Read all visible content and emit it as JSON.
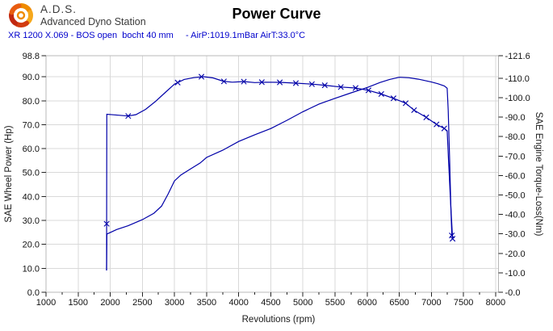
{
  "header": {
    "brand_abbr": "A.D.S.",
    "brand_name": "Advanced Dyno Station",
    "title": "Power Curve",
    "run_info_left": "XR 1200 X.069 - BOS open  bocht 40 mm",
    "run_info_right": "- AirP:1019.1mBar AirT:33.0°C"
  },
  "colors": {
    "curve": "#0000a8",
    "subtitle_text": "#0000cc",
    "grid": "#d9d9d9",
    "border": "#b8b8b8",
    "tick": "#222222",
    "logo_orange": "#ef8b00",
    "logo_amber": "#f6a81c",
    "logo_red": "#c22810",
    "logo_rust": "#d23c10",
    "logo_flame": "#e85c10"
  },
  "chart_data": {
    "type": "line",
    "title": "Power Curve",
    "x_axis": {
      "label": "Revolutions (rpm)",
      "min": 1000,
      "max": 8045,
      "major_tick_step": 500,
      "minor_tick_step": 250,
      "tick_values": [
        1000,
        1500,
        2000,
        2500,
        3000,
        3500,
        4000,
        4500,
        5000,
        5500,
        6000,
        6500,
        7000,
        7500,
        8000
      ],
      "tick_labels": [
        "1000",
        "1500",
        "2000",
        "2500",
        "3000",
        "3500",
        "4000",
        "4500",
        "5000",
        "5500",
        "6000",
        "6500",
        "7000",
        "7500",
        "8000"
      ]
    },
    "y_left": {
      "label": "SAE Wheel Power (Hp)",
      "min": 0,
      "max": 98.8,
      "tick_values": [
        98.8,
        90,
        80,
        70,
        60,
        50,
        40,
        30,
        20,
        10,
        0
      ],
      "tick_labels": [
        "98.8",
        "90.0",
        "80.0",
        "70.0",
        "60.0",
        "50.0",
        "40.0",
        "30.0",
        "20.0",
        "10.0",
        "0.0"
      ]
    },
    "y_right": {
      "label": "SAE Engine Torque-Loss(Nm)",
      "min": 0,
      "max": 121.6,
      "tick_values": [
        121.6,
        110,
        100,
        90,
        80,
        70,
        60,
        50,
        40,
        30,
        20,
        10,
        0
      ],
      "tick_labels": [
        "-121.6",
        "-110.0",
        "-100.0",
        "-90.0",
        "-80.0",
        "-70.0",
        "-60.0",
        "-50.0",
        "-40.0",
        "-30.0",
        "-20.0",
        "-10.0",
        "-0.0"
      ]
    },
    "grid": true,
    "legend": "none",
    "series": [
      {
        "name": "sae-wheel-power",
        "axis": "left",
        "unit": "Hp",
        "peak": {
          "rpm": 6500,
          "value": 89.8
        },
        "points": [
          [
            1943,
            9.1
          ],
          [
            1948,
            24.3
          ],
          [
            2100,
            26.2
          ],
          [
            2280,
            27.8
          ],
          [
            2500,
            30.3
          ],
          [
            2680,
            33
          ],
          [
            2800,
            36
          ],
          [
            2900,
            41
          ],
          [
            3000,
            46.5
          ],
          [
            3100,
            49
          ],
          [
            3250,
            51.5
          ],
          [
            3400,
            54
          ],
          [
            3500,
            56.3
          ],
          [
            3750,
            59.3
          ],
          [
            4000,
            63
          ],
          [
            4250,
            65.8
          ],
          [
            4500,
            68.4
          ],
          [
            4750,
            71.8
          ],
          [
            5000,
            75.4
          ],
          [
            5250,
            78.6
          ],
          [
            5500,
            81
          ],
          [
            5750,
            83.3
          ],
          [
            6000,
            85.5
          ],
          [
            6200,
            87.6
          ],
          [
            6350,
            88.9
          ],
          [
            6500,
            89.8
          ],
          [
            6650,
            89.6
          ],
          [
            6800,
            89
          ],
          [
            7000,
            87.8
          ],
          [
            7100,
            87.1
          ],
          [
            7200,
            86.2
          ],
          [
            7245,
            85.2
          ],
          [
            7262,
            76
          ],
          [
            7285,
            55
          ],
          [
            7305,
            34
          ],
          [
            7318,
            23.7
          ]
        ],
        "markers": [
          [
            7318,
            23.7
          ]
        ]
      },
      {
        "name": "sae-engine-torque",
        "axis": "right",
        "unit": "Nm",
        "peak": {
          "rpm": 3450,
          "value": 110.8
        },
        "points": [
          [
            1943,
            11.2
          ],
          [
            1944,
            35.2
          ],
          [
            1947,
            91.5
          ],
          [
            2050,
            91.2
          ],
          [
            2200,
            90.8
          ],
          [
            2280,
            90.6
          ],
          [
            2400,
            91.3
          ],
          [
            2550,
            94
          ],
          [
            2700,
            98
          ],
          [
            2850,
            102.5
          ],
          [
            3000,
            107
          ],
          [
            3150,
            109.4
          ],
          [
            3300,
            110.3
          ],
          [
            3450,
            110.8
          ],
          [
            3600,
            110.2
          ],
          [
            3760,
            108.5
          ],
          [
            3900,
            108
          ],
          [
            4080,
            108.3
          ],
          [
            4250,
            107.8
          ],
          [
            4420,
            108
          ],
          [
            4640,
            107.9
          ],
          [
            4890,
            107.5
          ],
          [
            5140,
            107
          ],
          [
            5340,
            106.4
          ],
          [
            5590,
            105.5
          ],
          [
            5820,
            105
          ],
          [
            6020,
            103.8
          ],
          [
            6220,
            101.9
          ],
          [
            6410,
            99.7
          ],
          [
            6600,
            97.2
          ],
          [
            6730,
            93.6
          ],
          [
            6920,
            89.9
          ],
          [
            7080,
            86.3
          ],
          [
            7200,
            84.2
          ],
          [
            7245,
            83
          ],
          [
            7270,
            66
          ],
          [
            7300,
            46
          ],
          [
            7330,
            27.5
          ]
        ],
        "markers": [
          [
            1944,
            35.2
          ],
          [
            2280,
            90.6
          ],
          [
            3050,
            107.8
          ],
          [
            3420,
            110.8
          ],
          [
            3770,
            108.4
          ],
          [
            4080,
            108.3
          ],
          [
            4360,
            108
          ],
          [
            4640,
            107.9
          ],
          [
            4890,
            107.5
          ],
          [
            5140,
            107
          ],
          [
            5340,
            106.4
          ],
          [
            5590,
            105.5
          ],
          [
            5820,
            105
          ],
          [
            6020,
            103.8
          ],
          [
            6220,
            101.9
          ],
          [
            6410,
            99.7
          ],
          [
            6600,
            97.2
          ],
          [
            6730,
            93.6
          ],
          [
            6920,
            89.9
          ],
          [
            7080,
            86.3
          ],
          [
            7200,
            84.2
          ],
          [
            7330,
            27.5
          ]
        ]
      }
    ]
  }
}
